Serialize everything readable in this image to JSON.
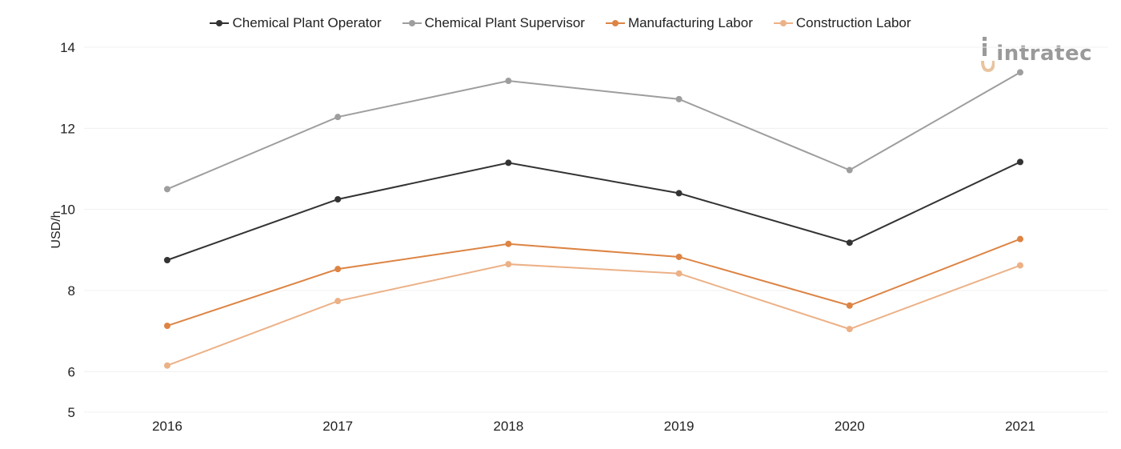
{
  "logo": {
    "text": "intratec"
  },
  "chart_data": {
    "type": "line",
    "x": [
      "2016",
      "2017",
      "2018",
      "2019",
      "2020",
      "2021"
    ],
    "ylabel": "USD/h",
    "xlabel": "",
    "ylim": [
      5,
      14
    ],
    "yticks": [
      5,
      6,
      8,
      10,
      12,
      14
    ],
    "grid": true,
    "legend_position": "top-center",
    "series": [
      {
        "name": "Chemical Plant Operator",
        "color": "#333333",
        "values": [
          8.75,
          10.25,
          11.15,
          10.4,
          9.18,
          11.17
        ]
      },
      {
        "name": "Chemical Plant Supervisor",
        "color": "#9e9e9e",
        "values": [
          10.5,
          12.28,
          13.17,
          12.72,
          10.97,
          13.38
        ]
      },
      {
        "name": "Manufacturing Labor",
        "color": "#dd8444",
        "values": [
          7.13,
          8.53,
          9.15,
          8.83,
          7.63,
          9.27
        ]
      },
      {
        "name": "Construction Labor",
        "color": "#ecb187",
        "values": [
          6.15,
          7.74,
          8.65,
          8.42,
          7.05,
          8.62
        ]
      }
    ]
  }
}
